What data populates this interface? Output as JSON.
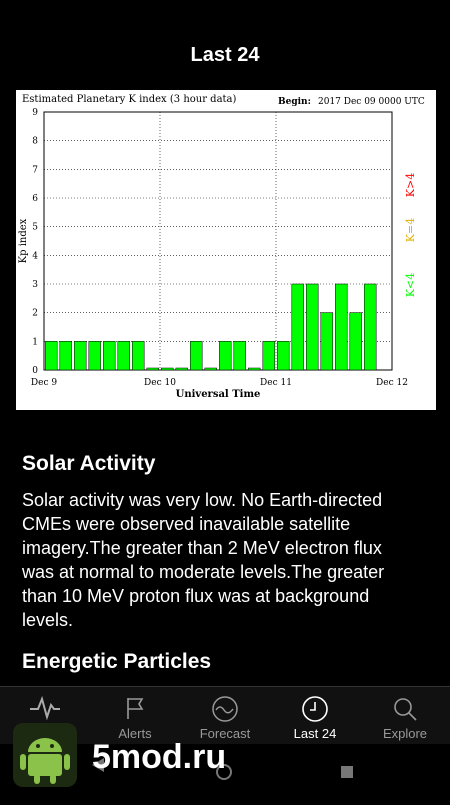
{
  "header": {
    "title": "Last 24"
  },
  "chart_data": {
    "type": "bar",
    "title": "Estimated Planetary K index (3 hour data)",
    "begin_label": "Begin:",
    "begin_value": "2017 Dec 09 0000 UTC",
    "ylabel": "Kp index",
    "xlabel": "Universal Time",
    "ylim": [
      0,
      9
    ],
    "yticks": [
      "0",
      "1",
      "2",
      "3",
      "4",
      "5",
      "6",
      "7",
      "8",
      "9"
    ],
    "xticks": [
      "Dec 9",
      "Dec 10",
      "Dec 11",
      "Dec 12"
    ],
    "values": [
      1,
      1,
      1,
      1,
      1,
      1,
      1,
      0,
      0,
      0,
      1,
      0,
      1,
      1,
      0,
      1,
      1,
      3,
      3,
      2,
      3,
      2,
      3,
      null
    ],
    "legend": [
      "K<4",
      "K=4",
      "K>4"
    ],
    "colors": {
      "low": "#00ff00",
      "eq4": "#e0b000",
      "high": "#ff0000",
      "grid": "#000000"
    }
  },
  "sections": {
    "solar_activity": {
      "heading": "Solar Activity",
      "lines": [
        "Solar activity was very low. No Earth-directed",
        "CMEs were observed inavailable satellite",
        "imagery.The greater than 2 MeV electron flux",
        "was at normal to moderate levels.The greater",
        "than 10 MeV proton flux was at background",
        "levels."
      ]
    },
    "energetic_particles": {
      "heading": "Energetic Particles"
    }
  },
  "nav": {
    "items": [
      {
        "label": "",
        "icon": "pulse-icon"
      },
      {
        "label": "Alerts",
        "icon": "flag-icon"
      },
      {
        "label": "Forecast",
        "icon": "wave-icon"
      },
      {
        "label": "Last 24",
        "icon": "clock-icon"
      },
      {
        "label": "Explore",
        "icon": "search-icon"
      }
    ],
    "active_index": 3
  },
  "watermark": {
    "text": "5mod.ru"
  }
}
